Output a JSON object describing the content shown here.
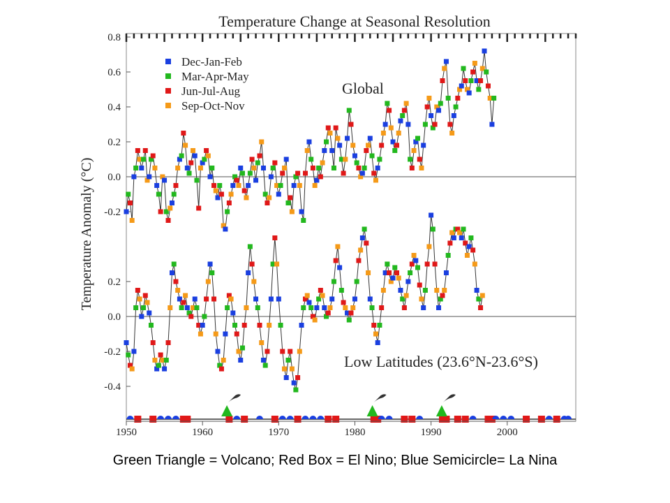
{
  "chart_data": {
    "type": "scatter",
    "title": "Temperature Change at Seasonal Resolution",
    "ylabel": "Temperature Anomaly (°C)",
    "xlim": [
      1950,
      2009
    ],
    "x_ticks": [
      "1950",
      "1960",
      "1970",
      "1980",
      "1990",
      "2000"
    ],
    "legend_position": "top-left",
    "season_colors": {
      "Dec-Jan-Feb": "#1a3fe0",
      "Mar-Apr-May": "#22b81e",
      "Jun-Jul-Aug": "#e01818",
      "Sep-Oct-Nov": "#f59a18"
    },
    "legend": [
      "Dec-Jan-Feb",
      "Mar-Apr-May",
      "Jun-Jul-Aug",
      "Sep-Oct-Nov"
    ],
    "panels": [
      {
        "label": "Global",
        "y_ticks": [
          "0.8",
          "0.6",
          "0.4",
          "0.2",
          "0.0",
          "-0.2"
        ],
        "ylim": [
          -0.3,
          0.8
        ],
        "x_start": 1950.0,
        "step": 0.25,
        "values": [
          -0.2,
          -0.1,
          -0.15,
          -0.25,
          0.0,
          0.05,
          0.15,
          0.1,
          0.05,
          0.1,
          0.15,
          -0.02,
          0.0,
          0.1,
          0.12,
          0.05,
          -0.05,
          -0.1,
          -0.2,
          0.0,
          -0.02,
          -0.2,
          -0.25,
          -0.18,
          -0.15,
          -0.1,
          -0.05,
          0.05,
          0.1,
          0.12,
          0.25,
          0.18,
          0.05,
          0.02,
          0.08,
          0.15,
          0.12,
          -0.02,
          -0.18,
          0.05,
          0.08,
          0.1,
          0.15,
          0.12,
          0.0,
          0.05,
          -0.05,
          -0.08,
          -0.12,
          -0.05,
          -0.1,
          -0.28,
          -0.3,
          -0.2,
          -0.15,
          -0.1,
          -0.05,
          0.0,
          -0.02,
          -0.05,
          0.05,
          0.02,
          -0.08,
          -0.12,
          -0.05,
          0.02,
          0.1,
          0.05,
          -0.02,
          0.08,
          0.12,
          0.2,
          0.05,
          -0.1,
          -0.15,
          -0.12,
          0.0,
          0.05,
          0.08,
          -0.05,
          -0.1,
          -0.05,
          0.02,
          0.05,
          0.1,
          -0.15,
          -0.12,
          -0.2,
          -0.05,
          0.0,
          0.02,
          -0.05,
          -0.2,
          -0.25,
          0.02,
          0.15,
          0.2,
          0.1,
          0.05,
          -0.05,
          -0.02,
          0.05,
          0.0,
          0.08,
          0.15,
          0.2,
          0.28,
          0.25,
          0.15,
          0.05,
          0.28,
          0.22,
          0.18,
          0.1,
          0.02,
          0.1,
          0.22,
          0.38,
          0.3,
          0.18,
          0.12,
          0.08,
          0.05,
          0.0,
          0.02,
          0.05,
          0.15,
          0.18,
          0.22,
          0.12,
          0.02,
          -0.02,
          0.05,
          0.1,
          0.18,
          0.25,
          0.3,
          0.42,
          0.38,
          0.28,
          0.2,
          0.15,
          0.18,
          0.25,
          0.32,
          0.35,
          0.38,
          0.42,
          0.3,
          0.1,
          0.05,
          0.15,
          0.2,
          0.22,
          0.1,
          0.05,
          0.18,
          0.3,
          0.4,
          0.45,
          0.35,
          0.28,
          0.3,
          0.4,
          0.38,
          0.42,
          0.55,
          0.62,
          0.66,
          0.45,
          0.3,
          0.25,
          0.35,
          0.4,
          0.45,
          0.5,
          0.52,
          0.62,
          0.55,
          0.5,
          0.48,
          0.55,
          0.6,
          0.65,
          0.55,
          0.5,
          0.55,
          0.62,
          0.72,
          0.6,
          0.52,
          0.45,
          0.3,
          0.45
        ]
      },
      {
        "label": "Low Latitudes (23.6°N-23.6°S)",
        "y_ticks": [
          "0.2",
          "0.0",
          "-0.2",
          "-0.4"
        ],
        "ylim": [
          -0.5,
          0.6
        ],
        "x_start": 1950.0,
        "step": 0.25,
        "values": [
          -0.15,
          -0.22,
          -0.28,
          -0.3,
          -0.2,
          0.05,
          0.15,
          0.1,
          0.0,
          0.05,
          0.12,
          0.08,
          0.02,
          -0.05,
          -0.15,
          -0.25,
          -0.3,
          -0.28,
          -0.22,
          -0.25,
          -0.3,
          -0.25,
          -0.15,
          0.05,
          0.25,
          0.3,
          0.2,
          0.15,
          0.1,
          0.05,
          0.08,
          0.12,
          0.05,
          0.02,
          0.0,
          0.05,
          0.1,
          0.05,
          -0.05,
          -0.1,
          -0.05,
          0.0,
          0.1,
          0.2,
          0.3,
          0.25,
          0.1,
          -0.1,
          -0.2,
          -0.28,
          -0.3,
          -0.25,
          -0.1,
          0.05,
          0.12,
          0.1,
          0.02,
          -0.05,
          -0.1,
          -0.2,
          -0.25,
          -0.18,
          -0.05,
          0.05,
          0.25,
          0.4,
          0.3,
          0.2,
          0.1,
          0.05,
          -0.05,
          -0.15,
          -0.25,
          -0.28,
          -0.2,
          -0.05,
          0.1,
          0.3,
          0.45,
          0.3,
          0.1,
          -0.05,
          -0.2,
          -0.3,
          -0.35,
          -0.25,
          -0.2,
          -0.3,
          -0.38,
          -0.42,
          -0.35,
          -0.2,
          -0.05,
          0.05,
          0.1,
          0.12,
          0.08,
          0.05,
          0.0,
          -0.02,
          0.05,
          0.1,
          0.15,
          0.12,
          0.05,
          0.0,
          0.02,
          0.05,
          0.1,
          0.2,
          0.32,
          0.4,
          0.28,
          0.15,
          0.08,
          0.05,
          0.02,
          -0.02,
          0.02,
          0.05,
          0.1,
          0.2,
          0.32,
          0.38,
          0.45,
          0.5,
          0.42,
          0.25,
          0.1,
          0.05,
          -0.05,
          -0.1,
          -0.15,
          -0.05,
          0.05,
          0.15,
          0.25,
          0.3,
          0.25,
          0.2,
          0.22,
          0.28,
          0.25,
          0.22,
          0.15,
          0.1,
          0.05,
          0.12,
          0.2,
          0.25,
          0.3,
          0.35,
          0.32,
          0.28,
          0.18,
          0.1,
          0.05,
          0.15,
          0.3,
          0.4,
          0.58,
          0.5,
          0.3,
          0.15,
          0.05,
          0.1,
          0.12,
          0.15,
          0.25,
          0.35,
          0.42,
          0.48,
          0.45,
          0.5,
          0.5,
          0.48,
          0.45,
          0.5,
          0.42,
          0.35,
          0.4,
          0.45,
          0.38,
          0.3,
          0.15,
          0.1,
          0.05,
          0.12
        ]
      }
    ],
    "timeline": {
      "volcano_years": [
        1963.2,
        1982.3,
        1991.4
      ],
      "el_nino_years": [
        1951.5,
        1953.5,
        1957.5,
        1958.0,
        1963.5,
        1965.5,
        1969.5,
        1972.5,
        1976.5,
        1977.5,
        1982.5,
        1983.0,
        1986.5,
        1987.5,
        1991.5,
        1992.0,
        1993.5,
        1994.5,
        1997.5,
        1998.0,
        2002.5,
        2004.5,
        2006.5
      ],
      "la_nina_years": [
        1950.5,
        1954.5,
        1955.5,
        1956.5,
        1964.5,
        1967.5,
        1970.5,
        1971.5,
        1973.5,
        1974.5,
        1975.5,
        1983.5,
        1984.5,
        1988.5,
        1995.5,
        1998.5,
        1999.5,
        2000.5,
        2005.5,
        2007.5,
        2008.0
      ]
    }
  },
  "caption": "Green Triangle = Volcano;  Red Box = El Nino;  Blue Semicircle= La Nina"
}
